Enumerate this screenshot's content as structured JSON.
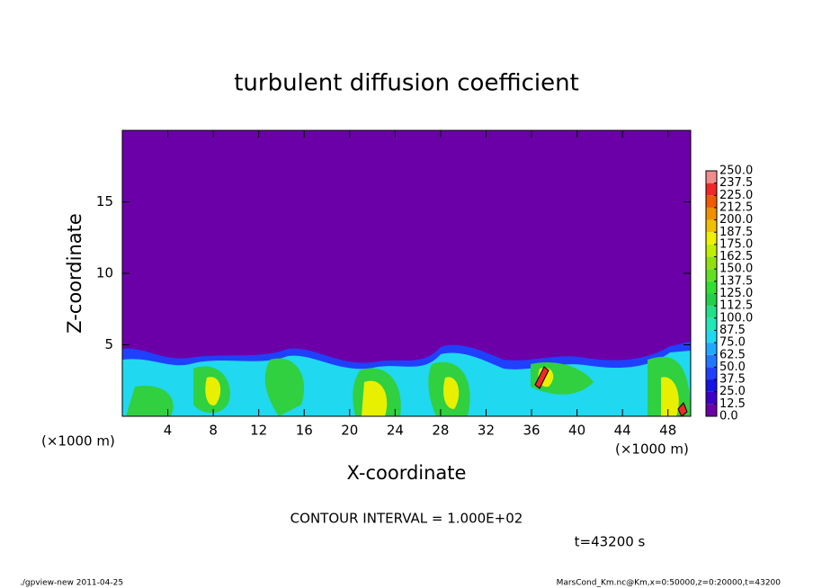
{
  "chart_data": {
    "type": "contour",
    "title": "turbulent diffusion coefficient",
    "xlabel": "X-coordinate",
    "ylabel": "Z-coordinate",
    "axis_unit": "(×1000 m)",
    "xlim": [
      0,
      50
    ],
    "xticks": [
      4,
      8,
      12,
      16,
      20,
      24,
      28,
      32,
      36,
      40,
      44,
      48
    ],
    "ylim": [
      0,
      20
    ],
    "yticks": [
      5,
      10,
      15
    ],
    "colorbar": {
      "levels": [
        {
          "value": 0,
          "label": "0.0"
        },
        {
          "value": 12.5,
          "label": "12.5"
        },
        {
          "value": 25,
          "label": "25.0"
        },
        {
          "value": 37.5,
          "label": "37.5"
        },
        {
          "value": 50,
          "label": "50.0"
        },
        {
          "value": 62.5,
          "label": "62.5"
        },
        {
          "value": 75,
          "label": "75.0"
        },
        {
          "value": 87.5,
          "label": "87.5"
        },
        {
          "value": 100,
          "label": "100.0"
        },
        {
          "value": 112.5,
          "label": "112.5"
        },
        {
          "value": 125,
          "label": "125.0"
        },
        {
          "value": 137.5,
          "label": "137.5"
        },
        {
          "value": 150,
          "label": "150.0"
        },
        {
          "value": 162.5,
          "label": "162.5"
        },
        {
          "value": 175,
          "label": "175.0"
        },
        {
          "value": 187.5,
          "label": "187.5"
        },
        {
          "value": 200,
          "label": "200.0"
        },
        {
          "value": 212.5,
          "label": "212.5"
        },
        {
          "value": 225,
          "label": "225.0"
        },
        {
          "value": 237.5,
          "label": "237.5"
        },
        {
          "value": 250,
          "label": "250.0"
        }
      ],
      "colors": [
        "#6c00a8",
        "#3c00c8",
        "#1414e6",
        "#2040ff",
        "#2078ff",
        "#20a8ff",
        "#20d8f0",
        "#20e8b8",
        "#20e088",
        "#20d048",
        "#30e030",
        "#60e020",
        "#90e010",
        "#c0f000",
        "#f0f000",
        "#f0c000",
        "#f09000",
        "#f05a00",
        "#f02828",
        "#f08c8c"
      ]
    },
    "contour_interval_label": "CONTOUR INTERVAL = 1.000E+02",
    "time_label": "t=43200 s"
  },
  "footer": {
    "left": "./gpview-new   2011-04-25",
    "right": "MarsCond_Km.nc@Km,x=0:50000,z=0:20000,t=43200"
  }
}
